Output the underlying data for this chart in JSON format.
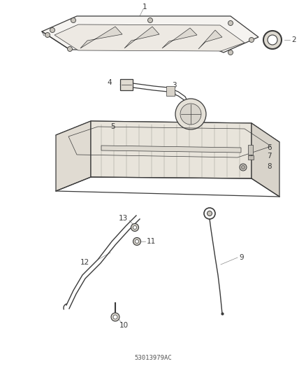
{
  "bg_color": "#ffffff",
  "lc": "#3a3a3a",
  "lc_light": "#888888",
  "fig_width": 4.38,
  "fig_height": 5.33,
  "dpi": 100,
  "part_number": "53013979AC",
  "label_fontsize": 7.5,
  "label_color": "#3a3a3a",
  "leader_lw": 0.5,
  "part_lw": 0.9,
  "part_lw_thin": 0.5
}
